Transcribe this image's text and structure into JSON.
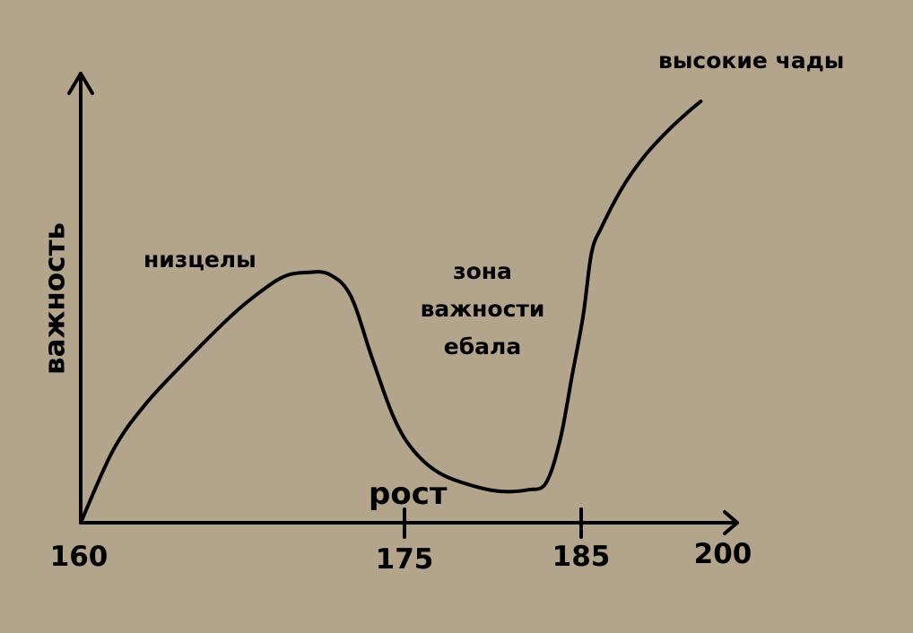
{
  "chart_data": {
    "type": "line",
    "xlabel": "рост",
    "ylabel": "важность",
    "x_ticks": [
      "160",
      "175",
      "185",
      "200"
    ],
    "x_tick_values": [
      160,
      175,
      185,
      200
    ],
    "grid": false,
    "series": [
      {
        "x": [
          160,
          161.5,
          163,
          165,
          167,
          168.5,
          169.5,
          170.5,
          171.5,
          172.5,
          173.5,
          174.5,
          175.5,
          177,
          179,
          180.5,
          182,
          183,
          183.8,
          184.5,
          185.2,
          186,
          187,
          189,
          191,
          193,
          195,
          196.5
        ],
        "y": [
          0,
          2.2,
          3.6,
          5.0,
          6.3,
          7.1,
          7.5,
          7.6,
          7.55,
          6.9,
          5.0,
          3.2,
          2.2,
          1.5,
          1.1,
          0.95,
          1.0,
          1.2,
          2.5,
          4.5,
          6.3,
          8.2,
          9.0,
          10.2,
          11.1,
          11.8,
          12.4,
          12.8
        ]
      }
    ],
    "xlim": [
      160,
      200
    ],
    "ylim": [
      0,
      14.5
    ],
    "annotations": [
      {
        "text": "низцелы"
      },
      {
        "text": "высокие чады"
      },
      {
        "lines": [
          "зона",
          "важности",
          "ебала"
        ]
      }
    ],
    "colors": {
      "background": "#b3a58b",
      "ink": "#000000"
    }
  }
}
